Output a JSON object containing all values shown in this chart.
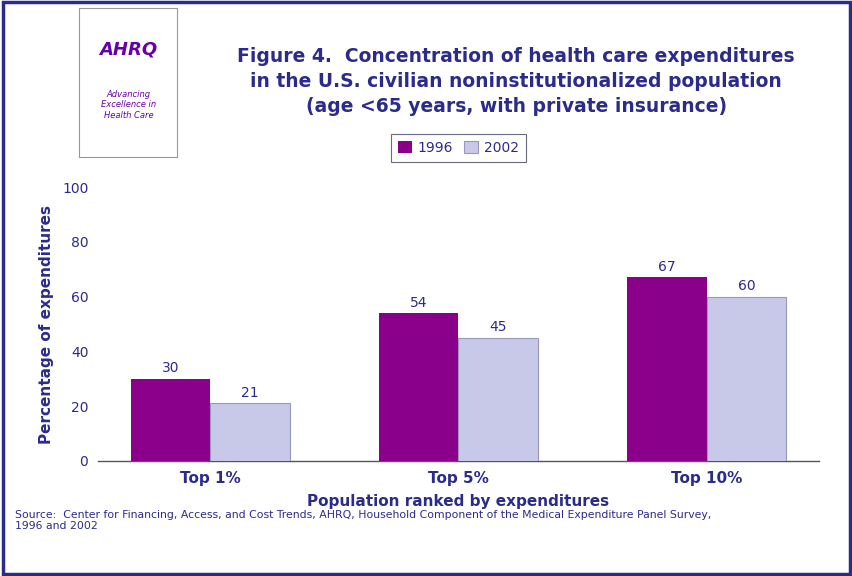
{
  "title": "Figure 4.  Concentration of health care expenditures\nin the U.S. civilian noninstitutionalized population\n(age <65 years, with private insurance)",
  "categories": [
    "Top 1%",
    "Top 5%",
    "Top 10%"
  ],
  "values_1996": [
    30,
    54,
    67
  ],
  "values_2002": [
    21,
    45,
    60
  ],
  "bar_color_1996": "#8B008B",
  "bar_color_2002": "#C8C8E8",
  "bar_color_2002_edge": "#9999bb",
  "xlabel": "Population ranked by expenditures",
  "ylabel": "Percentage of expenditures",
  "ylim": [
    0,
    100
  ],
  "yticks": [
    0,
    20,
    40,
    60,
    80,
    100
  ],
  "legend_labels": [
    "1996",
    "2002"
  ],
  "source_text": "Source:  Center for Financing, Access, and Cost Trends, AHRQ, Household Component of the Medical Expenditure Panel Survey,\n1996 and 2002",
  "outer_border_color": "#2b2b8c",
  "title_color": "#2b2b8c",
  "axis_label_color": "#2b2b8c",
  "tick_label_color": "#2b2b8c",
  "bar_value_color": "#2b2b8c",
  "bar_width": 0.32,
  "background_color": "#ffffff",
  "header_separator_color": "#2b2b8c",
  "logo_bg_color": "#3399cc",
  "logo_right_bg": "#ffffff"
}
